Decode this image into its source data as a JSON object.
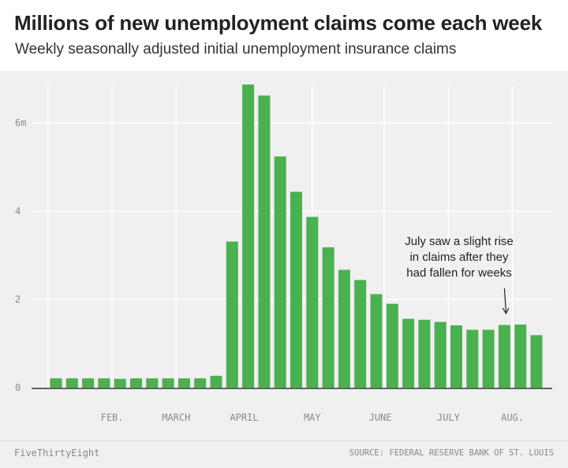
{
  "chart_data": {
    "type": "bar",
    "title": "Millions of new unemployment claims come each week",
    "subtitle": "Weekly seasonally adjusted initial unemployment insurance claims",
    "xlabel": "",
    "ylabel": "",
    "ylim": [
      0,
      7
    ],
    "y_ticks": [
      {
        "value": 0,
        "label": "0"
      },
      {
        "value": 2,
        "label": "2"
      },
      {
        "value": 4,
        "label": "4"
      },
      {
        "value": 6,
        "label": "6m"
      }
    ],
    "x_ticks": [
      "FEB.",
      "MARCH",
      "APRIL",
      "MAY",
      "JUNE",
      "JULY",
      "AUG."
    ],
    "x_tick_bar_index": [
      3.5,
      7.5,
      11.75,
      16,
      20.25,
      24.5,
      28.5
    ],
    "month_gridline_bar_index": [
      -0.5,
      3.5,
      7.5,
      12.0,
      16.0,
      20.5,
      24.5,
      28.5
    ],
    "values": [
      0.21,
      0.21,
      0.21,
      0.21,
      0.2,
      0.21,
      0.21,
      0.21,
      0.21,
      0.21,
      0.27,
      3.31,
      6.87,
      6.62,
      5.24,
      4.44,
      3.87,
      3.18,
      2.67,
      2.44,
      2.12,
      1.9,
      1.56,
      1.54,
      1.49,
      1.41,
      1.31,
      1.31,
      1.42,
      1.43,
      1.19
    ],
    "annotation": {
      "lines": [
        "July saw a slight rise",
        "in claims after they",
        "had fallen for weeks"
      ],
      "bar_index": 28
    },
    "grid": true,
    "legend": "none",
    "colors": {
      "bar": "#4caf50",
      "grid": "#ffffff",
      "background": "#f0f0f0"
    }
  },
  "footer": {
    "brand": "FiveThirtyEight",
    "source": "SOURCE: FEDERAL RESERVE BANK OF ST. LOUIS"
  }
}
